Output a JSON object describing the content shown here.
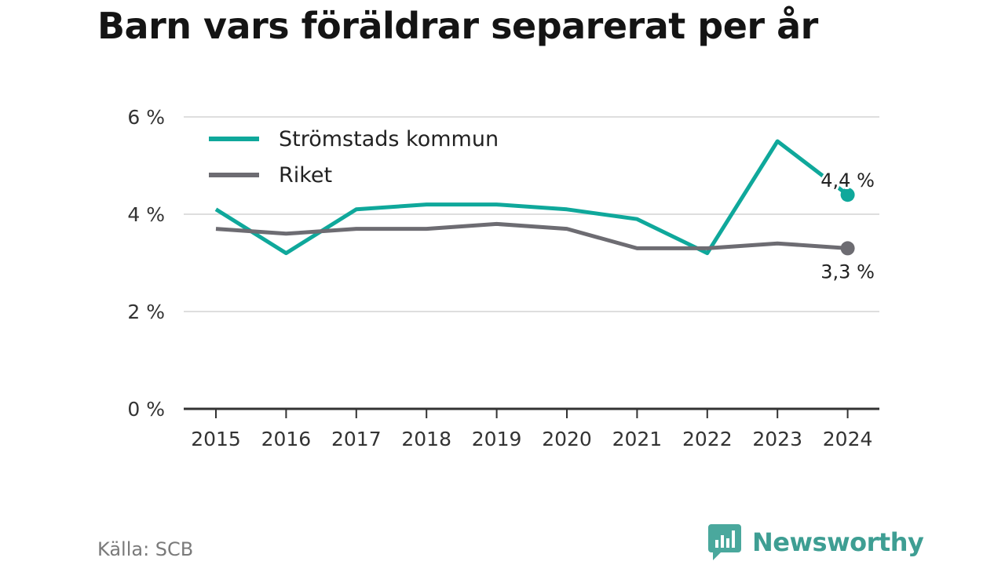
{
  "title": "Barn vars föräldrar separerat per år",
  "source": "Källa: SCB",
  "brand": "Newsworthy",
  "chart_data": {
    "type": "line",
    "categories": [
      "2015",
      "2016",
      "2017",
      "2018",
      "2019",
      "2020",
      "2021",
      "2022",
      "2023",
      "2024"
    ],
    "ylim": [
      0,
      6
    ],
    "yticks": [
      {
        "value": 0,
        "label": "0 %"
      },
      {
        "value": 2,
        "label": "2 %"
      },
      {
        "value": 4,
        "label": "4 %"
      },
      {
        "value": 6,
        "label": "6 %"
      }
    ],
    "grid": true,
    "legend_position": "top-left",
    "series": [
      {
        "name": "Strömstads kommun",
        "color": "#0fa89b",
        "values": [
          4.1,
          3.2,
          4.1,
          4.2,
          4.2,
          4.1,
          3.9,
          3.2,
          5.5,
          4.4
        ],
        "end_label": "4,4 %"
      },
      {
        "name": "Riket",
        "color": "#6d6c72",
        "values": [
          3.7,
          3.6,
          3.7,
          3.7,
          3.8,
          3.7,
          3.3,
          3.3,
          3.4,
          3.3
        ],
        "end_label": "3,3 %"
      }
    ]
  }
}
